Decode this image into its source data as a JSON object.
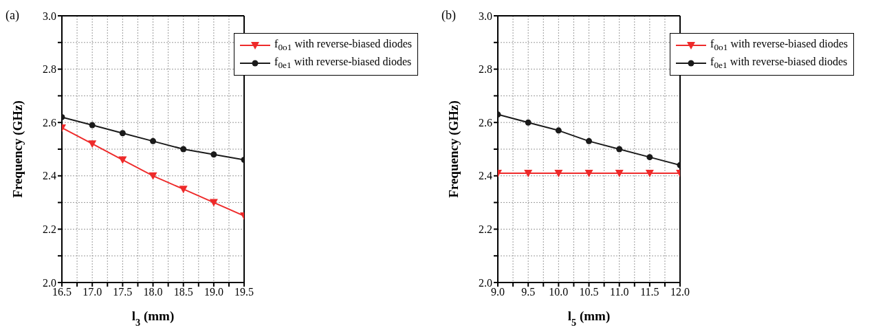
{
  "chart_data": [
    {
      "type": "line",
      "title": "(a)",
      "xlabel": "l$_{3}$ (mm)",
      "ylabel": "Frequency (GHz)",
      "x": [
        16.5,
        17.0,
        17.5,
        18.0,
        18.5,
        19.0,
        19.5
      ],
      "series": [
        {
          "name": "f$_{0o1}$ with reverse-biased diodes",
          "color": "#ee2a2a",
          "marker": "triangle",
          "values": [
            2.58,
            2.52,
            2.46,
            2.4,
            2.35,
            2.3,
            2.25
          ]
        },
        {
          "name": "f$_{0e1}$ with reverse-biased diodes",
          "color": "#1a1a1a",
          "marker": "circle",
          "values": [
            2.62,
            2.59,
            2.56,
            2.53,
            2.5,
            2.48,
            2.46
          ]
        }
      ],
      "xlim": [
        16.5,
        19.5
      ],
      "ylim": [
        2.0,
        3.0
      ],
      "xticks": [
        {
          "value": 16.5,
          "label": "16.5"
        },
        {
          "value": 16.75,
          "label": null
        },
        {
          "value": 17.0,
          "label": "17.0"
        },
        {
          "value": 17.25,
          "label": null
        },
        {
          "value": 17.5,
          "label": "17.5"
        },
        {
          "value": 17.75,
          "label": null
        },
        {
          "value": 18.0,
          "label": "18.0"
        },
        {
          "value": 18.25,
          "label": null
        },
        {
          "value": 18.5,
          "label": "18.5"
        },
        {
          "value": 18.75,
          "label": null
        },
        {
          "value": 19.0,
          "label": "19.0"
        },
        {
          "value": 19.25,
          "label": null
        },
        {
          "value": 19.5,
          "label": "19.5"
        }
      ],
      "yticks": [
        {
          "value": 2.0,
          "label": "2.0"
        },
        {
          "value": 2.1,
          "label": null
        },
        2.2,
        {
          "value": 2.3,
          "label": null
        },
        2.4,
        {
          "value": 2.5,
          "label": null
        },
        2.6,
        {
          "value": 2.7,
          "label": null
        },
        2.8,
        {
          "value": 2.9,
          "label": null
        },
        {
          "value": 3.0,
          "label": "3.0"
        }
      ],
      "grid": true,
      "legend": "top right",
      "line_style": "solid"
    },
    {
      "type": "line",
      "title": "(b)",
      "xlabel": "l$_{5}$ (mm)",
      "ylabel": "Frequency (GHz)",
      "x": [
        9.0,
        9.5,
        10.0,
        10.5,
        11.0,
        11.5,
        12.0
      ],
      "series": [
        {
          "name": "f$_{0o1}$ with reverse-biased diodes",
          "color": "#ee2a2a",
          "marker": "triangle",
          "values": [
            2.41,
            2.41,
            2.41,
            2.41,
            2.41,
            2.41,
            2.41
          ]
        },
        {
          "name": "f$_{0e1}$ with reverse-biased diodes",
          "color": "#1a1a1a",
          "marker": "circle",
          "values": [
            2.63,
            2.6,
            2.57,
            2.53,
            2.5,
            2.47,
            2.44
          ]
        }
      ],
      "xlim": [
        9.0,
        12.0
      ],
      "ylim": [
        2.0,
        3.0
      ],
      "xticks": [
        {
          "value": 9.0,
          "label": "9.0"
        },
        {
          "value": 9.25,
          "label": null
        },
        9.5,
        {
          "value": 9.75,
          "label": null
        },
        {
          "value": 10.0,
          "label": "10.0"
        },
        {
          "value": 10.25,
          "label": null
        },
        10.5,
        {
          "value": 10.75,
          "label": null
        },
        {
          "value": 11.0,
          "label": "11.0"
        },
        {
          "value": 11.25,
          "label": null
        },
        11.5,
        {
          "value": 11.75,
          "label": null
        },
        {
          "value": 12.0,
          "label": "12.0"
        }
      ],
      "yticks": [
        {
          "value": 2.0,
          "label": "2.0"
        },
        {
          "value": 2.1,
          "label": null
        },
        2.2,
        {
          "value": 2.3,
          "label": null
        },
        2.4,
        {
          "value": 2.5,
          "label": null
        },
        2.6,
        {
          "value": 2.7,
          "label": null
        },
        2.8,
        {
          "value": 2.9,
          "label": null
        },
        {
          "value": 3.0,
          "label": "3.0"
        }
      ],
      "grid": true,
      "legend": "top right",
      "line_style": "solid"
    }
  ]
}
